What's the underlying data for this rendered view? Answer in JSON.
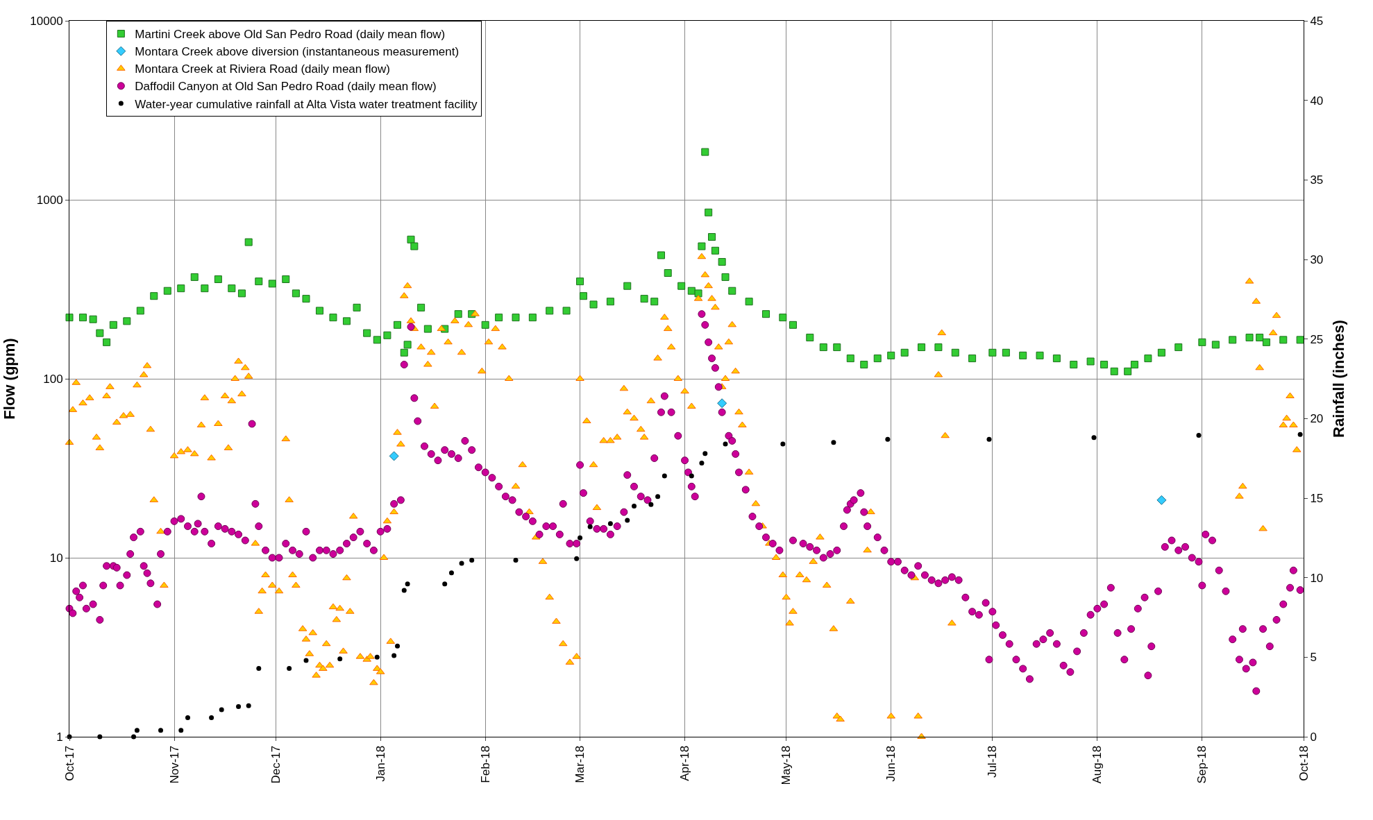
{
  "chart_data": {
    "type": "scatter",
    "ylabel": "Flow (gpm)",
    "y2label": "Rainfall (inches)",
    "log": "y",
    "grid": true,
    "legend": "top left",
    "xlim": [
      "2017-10-01",
      "2018-10-01"
    ],
    "xticks": [
      {
        "value": "2017-10-01",
        "label": "Oct-17"
      },
      {
        "value": "2017-11-01",
        "label": "Nov-17"
      },
      {
        "value": "2017-12-01",
        "label": "Dec-17"
      },
      {
        "value": "2018-01-01",
        "label": "Jan-18"
      },
      {
        "value": "2018-02-01",
        "label": "Feb-18"
      },
      {
        "value": "2018-03-01",
        "label": "Mar-18"
      },
      {
        "value": "2018-04-01",
        "label": "Apr-18"
      },
      {
        "value": "2018-05-01",
        "label": "May-18"
      },
      {
        "value": "2018-06-01",
        "label": "Jun-18"
      },
      {
        "value": "2018-07-01",
        "label": "Jul-18"
      },
      {
        "value": "2018-08-01",
        "label": "Aug-18"
      },
      {
        "value": "2018-09-01",
        "label": "Sep-18"
      },
      {
        "value": "2018-10-01",
        "label": "Oct-18"
      }
    ],
    "ylim": [
      1,
      10000
    ],
    "yticks": [
      1,
      10,
      100,
      1000,
      10000
    ],
    "y2lim": [
      0,
      45
    ],
    "y2ticks": [
      0,
      5,
      10,
      15,
      20,
      25,
      30,
      35,
      40,
      45
    ],
    "series": [
      {
        "name": "Martini Creek above Old San Pedro Road (daily mean flow)",
        "color": "#33cc33",
        "marker": "square",
        "x": [
          "2017-10-01",
          "2017-10-05",
          "2017-10-08",
          "2017-10-10",
          "2017-10-12",
          "2017-10-14",
          "2017-10-18",
          "2017-10-22",
          "2017-10-26",
          "2017-10-30",
          "2017-11-03",
          "2017-11-07",
          "2017-11-10",
          "2017-11-14",
          "2017-11-18",
          "2017-11-21",
          "2017-11-23",
          "2017-11-26",
          "2017-11-30",
          "2017-12-04",
          "2017-12-07",
          "2017-12-10",
          "2017-12-14",
          "2017-12-18",
          "2017-12-22",
          "2017-12-25",
          "2017-12-28",
          "2017-12-31",
          "2018-01-03",
          "2018-01-06",
          "2018-01-08",
          "2018-01-09",
          "2018-01-10",
          "2018-01-11",
          "2018-01-13",
          "2018-01-15",
          "2018-01-20",
          "2018-01-24",
          "2018-01-28",
          "2018-02-01",
          "2018-02-05",
          "2018-02-10",
          "2018-02-15",
          "2018-02-20",
          "2018-02-25",
          "2018-03-01",
          "2018-03-02",
          "2018-03-05",
          "2018-03-10",
          "2018-03-15",
          "2018-03-20",
          "2018-03-23",
          "2018-03-25",
          "2018-03-27",
          "2018-03-31",
          "2018-04-03",
          "2018-04-05",
          "2018-04-06",
          "2018-04-07",
          "2018-04-08",
          "2018-04-09",
          "2018-04-10",
          "2018-04-12",
          "2018-04-13",
          "2018-04-15",
          "2018-04-20",
          "2018-04-25",
          "2018-04-30",
          "2018-05-03",
          "2018-05-08",
          "2018-05-12",
          "2018-05-16",
          "2018-05-20",
          "2018-05-24",
          "2018-05-28",
          "2018-06-01",
          "2018-06-05",
          "2018-06-10",
          "2018-06-15",
          "2018-06-20",
          "2018-06-25",
          "2018-07-01",
          "2018-07-05",
          "2018-07-10",
          "2018-07-15",
          "2018-07-20",
          "2018-07-25",
          "2018-07-30",
          "2018-08-03",
          "2018-08-06",
          "2018-08-10",
          "2018-08-12",
          "2018-08-16",
          "2018-08-20",
          "2018-08-25",
          "2018-09-01",
          "2018-09-05",
          "2018-09-10",
          "2018-09-15",
          "2018-09-18",
          "2018-09-20",
          "2018-09-25",
          "2018-09-30"
        ],
        "values": [
          220,
          220,
          215,
          180,
          160,
          200,
          210,
          240,
          290,
          310,
          320,
          370,
          320,
          360,
          320,
          300,
          580,
          350,
          340,
          360,
          300,
          280,
          240,
          220,
          210,
          250,
          180,
          165,
          175,
          200,
          140,
          155,
          600,
          550,
          250,
          190,
          190,
          230,
          230,
          200,
          220,
          220,
          220,
          240,
          240,
          350,
          290,
          260,
          270,
          330,
          280,
          270,
          490,
          390,
          330,
          310,
          300,
          550,
          1850,
          850,
          620,
          520,
          450,
          370,
          310,
          270,
          230,
          220,
          200,
          170,
          150,
          150,
          130,
          120,
          130,
          135,
          140,
          150,
          150,
          140,
          130,
          140,
          140,
          135,
          135,
          130,
          120,
          125,
          120,
          110,
          110,
          120,
          130,
          140,
          150,
          160,
          155,
          165,
          170,
          170,
          160,
          165,
          165
        ]
      },
      {
        "name": "Montara Creek above diversion (instantaneous measurement)",
        "color": "#33ccff",
        "marker": "diamond",
        "x": [
          "2018-01-05",
          "2018-04-12",
          "2018-08-20"
        ],
        "values": [
          37,
          73,
          21
        ]
      },
      {
        "name": "Montara Creek at Riviera Road (daily mean flow)",
        "color": "#ffcc00",
        "marker": "triangle",
        "x": [
          "2017-10-01",
          "2017-10-02",
          "2017-10-03",
          "2017-10-05",
          "2017-10-07",
          "2017-10-09",
          "2017-10-10",
          "2017-10-12",
          "2017-10-13",
          "2017-10-15",
          "2017-10-17",
          "2017-10-19",
          "2017-10-21",
          "2017-10-23",
          "2017-10-24",
          "2017-10-25",
          "2017-10-26",
          "2017-10-28",
          "2017-10-29",
          "2017-11-01",
          "2017-11-03",
          "2017-11-05",
          "2017-11-07",
          "2017-11-09",
          "2017-11-10",
          "2017-11-12",
          "2017-11-14",
          "2017-11-16",
          "2017-11-17",
          "2017-11-18",
          "2017-11-19",
          "2017-11-20",
          "2017-11-21",
          "2017-11-22",
          "2017-11-23",
          "2017-11-25",
          "2017-11-26",
          "2017-11-27",
          "2017-11-28",
          "2017-11-30",
          "2017-12-02",
          "2017-12-04",
          "2017-12-05",
          "2017-12-06",
          "2017-12-07",
          "2017-12-09",
          "2017-12-10",
          "2017-12-11",
          "2017-12-12",
          "2017-12-13",
          "2017-12-14",
          "2017-12-15",
          "2017-12-16",
          "2017-12-17",
          "2017-12-18",
          "2017-12-19",
          "2017-12-20",
          "2017-12-21",
          "2017-12-22",
          "2017-12-23",
          "2017-12-24",
          "2017-12-26",
          "2017-12-28",
          "2017-12-29",
          "2017-12-30",
          "2017-12-31",
          "2018-01-01",
          "2018-01-02",
          "2018-01-03",
          "2018-01-04",
          "2018-01-05",
          "2018-01-06",
          "2018-01-07",
          "2018-01-08",
          "2018-01-09",
          "2018-01-10",
          "2018-01-11",
          "2018-01-13",
          "2018-01-15",
          "2018-01-16",
          "2018-01-17",
          "2018-01-19",
          "2018-01-21",
          "2018-01-23",
          "2018-01-25",
          "2018-01-27",
          "2018-01-29",
          "2018-01-31",
          "2018-02-02",
          "2018-02-04",
          "2018-02-06",
          "2018-02-08",
          "2018-02-10",
          "2018-02-12",
          "2018-02-14",
          "2018-02-16",
          "2018-02-18",
          "2018-02-20",
          "2018-02-22",
          "2018-02-24",
          "2018-02-26",
          "2018-02-28",
          "2018-03-01",
          "2018-03-03",
          "2018-03-05",
          "2018-03-06",
          "2018-03-08",
          "2018-03-10",
          "2018-03-12",
          "2018-03-14",
          "2018-03-15",
          "2018-03-17",
          "2018-03-19",
          "2018-03-20",
          "2018-03-22",
          "2018-03-24",
          "2018-03-26",
          "2018-03-27",
          "2018-03-28",
          "2018-03-30",
          "2018-04-01",
          "2018-04-03",
          "2018-04-05",
          "2018-04-06",
          "2018-04-07",
          "2018-04-08",
          "2018-04-09",
          "2018-04-10",
          "2018-04-11",
          "2018-04-12",
          "2018-04-13",
          "2018-04-14",
          "2018-04-15",
          "2018-04-16",
          "2018-04-17",
          "2018-04-18",
          "2018-04-20",
          "2018-04-22",
          "2018-04-24",
          "2018-04-26",
          "2018-04-28",
          "2018-04-30",
          "2018-05-01",
          "2018-05-02",
          "2018-05-03",
          "2018-05-05",
          "2018-05-07",
          "2018-05-09",
          "2018-05-11",
          "2018-05-13",
          "2018-05-15",
          "2018-05-16",
          "2018-05-17",
          "2018-05-20",
          "2018-05-25",
          "2018-05-26",
          "2018-06-01",
          "2018-06-08",
          "2018-06-09",
          "2018-06-10",
          "2018-06-15",
          "2018-06-16",
          "2018-06-17",
          "2018-06-19",
          "2018-09-12",
          "2018-09-13",
          "2018-09-15",
          "2018-09-17",
          "2018-09-18",
          "2018-09-19",
          "2018-09-22",
          "2018-09-23",
          "2018-09-25",
          "2018-09-26",
          "2018-09-27",
          "2018-09-28",
          "2018-09-29"
        ],
        "values": [
          44,
          67,
          95,
          73,
          78,
          47,
          41,
          80,
          90,
          57,
          62,
          63,
          92,
          105,
          118,
          52,
          21,
          14,
          7,
          37,
          39,
          40,
          38,
          55,
          78,
          36,
          56,
          80,
          41,
          75,
          100,
          125,
          82,
          115,
          103,
          12,
          5,
          6.5,
          8,
          7,
          6.5,
          46,
          21,
          8,
          7,
          4,
          3.5,
          2.9,
          3.8,
          2.2,
          2.5,
          2.4,
          3.3,
          2.5,
          5.3,
          4.5,
          5.2,
          3,
          7.7,
          5,
          17,
          2.8,
          2.7,
          2.8,
          2,
          2.4,
          2.3,
          10,
          16,
          3.4,
          18,
          50,
          43,
          290,
          330,
          210,
          190,
          150,
          120,
          140,
          70,
          190,
          160,
          210,
          140,
          200,
          230,
          110,
          160,
          190,
          150,
          100,
          25,
          33,
          18,
          13,
          9.5,
          6,
          4.4,
          3.3,
          2.6,
          2.8,
          100,
          58,
          33,
          19,
          45,
          45,
          47,
          88,
          65,
          60,
          52,
          47,
          75,
          130,
          220,
          190,
          150,
          100,
          85,
          70,
          280,
          480,
          380,
          330,
          280,
          250,
          150,
          90,
          100,
          160,
          200,
          110,
          65,
          55,
          30,
          20,
          15,
          12,
          10,
          8,
          6,
          4.3,
          5,
          8,
          7.5,
          9.5,
          13,
          7,
          4,
          1.3,
          1.25,
          5.7,
          11,
          18,
          1.3,
          7.7,
          1.3,
          1.0,
          105,
          180,
          48,
          4.3,
          22,
          25,
          350,
          270,
          115,
          14.5,
          180,
          225,
          55,
          60,
          80,
          55,
          40
        ]
      },
      {
        "name": "Daffodil Canyon at Old San Pedro Road (daily mean flow)",
        "color": "#cc0099",
        "marker": "circle",
        "x": [
          "2017-10-01",
          "2017-10-02",
          "2017-10-03",
          "2017-10-04",
          "2017-10-05",
          "2017-10-06",
          "2017-10-08",
          "2017-10-10",
          "2017-10-11",
          "2017-10-12",
          "2017-10-14",
          "2017-10-15",
          "2017-10-16",
          "2017-10-18",
          "2017-10-19",
          "2017-10-20",
          "2017-10-22",
          "2017-10-23",
          "2017-10-24",
          "2017-10-25",
          "2017-10-27",
          "2017-10-28",
          "2017-10-30",
          "2017-11-01",
          "2017-11-03",
          "2017-11-05",
          "2017-11-07",
          "2017-11-08",
          "2017-11-09",
          "2017-11-10",
          "2017-11-12",
          "2017-11-14",
          "2017-11-16",
          "2017-11-18",
          "2017-11-20",
          "2017-11-22",
          "2017-11-24",
          "2017-11-25",
          "2017-11-26",
          "2017-11-28",
          "2017-11-30",
          "2017-12-02",
          "2017-12-04",
          "2017-12-06",
          "2017-12-08",
          "2017-12-10",
          "2017-12-12",
          "2017-12-14",
          "2017-12-16",
          "2017-12-18",
          "2017-12-20",
          "2017-12-22",
          "2017-12-24",
          "2017-12-26",
          "2017-12-28",
          "2017-12-30",
          "2018-01-01",
          "2018-01-03",
          "2018-01-05",
          "2018-01-07",
          "2018-01-08",
          "2018-01-10",
          "2018-01-11",
          "2018-01-12",
          "2018-01-14",
          "2018-01-16",
          "2018-01-18",
          "2018-01-20",
          "2018-01-22",
          "2018-01-24",
          "2018-01-26",
          "2018-01-28",
          "2018-01-30",
          "2018-02-01",
          "2018-02-03",
          "2018-02-05",
          "2018-02-07",
          "2018-02-09",
          "2018-02-11",
          "2018-02-13",
          "2018-02-15",
          "2018-02-17",
          "2018-02-19",
          "2018-02-21",
          "2018-02-23",
          "2018-02-24",
          "2018-02-26",
          "2018-02-28",
          "2018-03-01",
          "2018-03-02",
          "2018-03-04",
          "2018-03-06",
          "2018-03-08",
          "2018-03-10",
          "2018-03-12",
          "2018-03-14",
          "2018-03-15",
          "2018-03-17",
          "2018-03-19",
          "2018-03-21",
          "2018-03-23",
          "2018-03-25",
          "2018-03-26",
          "2018-03-28",
          "2018-03-30",
          "2018-04-01",
          "2018-04-02",
          "2018-04-03",
          "2018-04-04",
          "2018-04-06",
          "2018-04-07",
          "2018-04-08",
          "2018-04-09",
          "2018-04-10",
          "2018-04-11",
          "2018-04-12",
          "2018-04-14",
          "2018-04-15",
          "2018-04-16",
          "2018-04-17",
          "2018-04-19",
          "2018-04-21",
          "2018-04-23",
          "2018-04-25",
          "2018-04-27",
          "2018-04-29",
          "2018-05-03",
          "2018-05-06",
          "2018-05-08",
          "2018-05-10",
          "2018-05-12",
          "2018-05-14",
          "2018-05-16",
          "2018-05-18",
          "2018-05-19",
          "2018-05-20",
          "2018-05-21",
          "2018-05-23",
          "2018-05-24",
          "2018-05-25",
          "2018-05-28",
          "2018-05-30",
          "2018-06-01",
          "2018-06-03",
          "2018-06-05",
          "2018-06-07",
          "2018-06-09",
          "2018-06-11",
          "2018-06-13",
          "2018-06-15",
          "2018-06-17",
          "2018-06-19",
          "2018-06-21",
          "2018-06-23",
          "2018-06-25",
          "2018-06-27",
          "2018-06-29",
          "2018-06-30",
          "2018-07-01",
          "2018-07-02",
          "2018-07-04",
          "2018-07-06",
          "2018-07-08",
          "2018-07-10",
          "2018-07-12",
          "2018-07-14",
          "2018-07-16",
          "2018-07-18",
          "2018-07-20",
          "2018-07-22",
          "2018-07-24",
          "2018-07-26",
          "2018-07-28",
          "2018-07-30",
          "2018-08-01",
          "2018-08-03",
          "2018-08-05",
          "2018-08-07",
          "2018-08-09",
          "2018-08-11",
          "2018-08-13",
          "2018-08-15",
          "2018-08-16",
          "2018-08-17",
          "2018-08-19",
          "2018-08-21",
          "2018-08-23",
          "2018-08-25",
          "2018-08-27",
          "2018-08-29",
          "2018-08-31",
          "2018-09-01",
          "2018-09-02",
          "2018-09-04",
          "2018-09-06",
          "2018-09-08",
          "2018-09-10",
          "2018-09-12",
          "2018-09-13",
          "2018-09-14",
          "2018-09-16",
          "2018-09-17",
          "2018-09-19",
          "2018-09-21",
          "2018-09-23",
          "2018-09-25",
          "2018-09-27",
          "2018-09-28",
          "2018-09-30"
        ],
        "values": [
          5.2,
          4.9,
          6.5,
          6,
          7,
          5.2,
          5.5,
          4.5,
          7,
          9,
          9,
          8.8,
          7,
          8,
          10.5,
          13,
          14,
          9,
          8.2,
          7.2,
          5.5,
          10.5,
          14,
          16,
          16.5,
          15,
          14,
          15.5,
          22,
          14,
          12,
          15,
          14.5,
          14,
          13.5,
          12.5,
          56,
          20,
          15,
          11,
          10,
          10,
          12,
          11,
          10.5,
          14,
          10,
          11,
          11,
          10.5,
          11,
          12,
          13,
          14,
          12,
          11,
          14,
          14.5,
          20,
          21,
          120,
          195,
          78,
          58,
          42,
          38,
          35,
          40,
          38,
          36,
          45,
          40,
          32,
          30,
          28,
          25,
          22,
          21,
          18,
          17,
          16,
          13.5,
          15,
          15,
          13.5,
          20,
          12,
          12,
          33,
          23,
          16,
          14.5,
          14.5,
          13.5,
          15,
          18,
          29,
          25,
          22,
          21,
          36,
          65,
          80,
          65,
          48,
          35,
          30,
          25,
          22,
          230,
          200,
          160,
          130,
          115,
          90,
          65,
          48,
          45,
          38,
          30,
          24,
          17,
          15,
          13,
          12,
          11,
          12.5,
          12,
          11.5,
          11,
          10,
          10.5,
          11,
          15,
          18.5,
          20,
          21,
          23,
          18,
          15,
          13,
          11,
          9.5,
          9.5,
          8.5,
          8,
          9,
          8,
          7.5,
          7.2,
          7.5,
          7.8,
          7.5,
          6,
          5,
          4.8,
          5.6,
          2.7,
          5,
          4.2,
          3.7,
          3.3,
          2.7,
          2.4,
          2.1,
          3.3,
          3.5,
          3.8,
          3.3,
          2.5,
          2.3,
          3,
          3.8,
          4.8,
          5.2,
          5.5,
          6.8,
          3.8,
          2.7,
          4,
          5.2,
          6,
          2.2,
          3.2,
          6.5,
          11.5,
          12.5,
          11,
          11.5,
          10,
          9.5,
          7,
          13.5,
          12.5,
          8.5,
          6.5,
          3.5,
          2.7,
          4,
          2.4,
          2.6,
          1.8,
          4,
          3.2,
          4.5,
          5.5,
          6.8,
          8.5,
          6.6
        ]
      },
      {
        "name": "Water-year cumulative rainfall at Alta Vista water treatment facility",
        "color": "#000000",
        "marker": "circle",
        "axis": "y2",
        "x": [
          "2017-10-01",
          "2017-10-10",
          "2017-10-20",
          "2017-10-21",
          "2017-10-28",
          "2017-11-03",
          "2017-11-05",
          "2017-11-12",
          "2017-11-15",
          "2017-11-20",
          "2017-11-23",
          "2017-11-26",
          "2017-12-05",
          "2017-12-10",
          "2017-12-20",
          "2017-12-31",
          "2018-01-05",
          "2018-01-06",
          "2018-01-08",
          "2018-01-09",
          "2018-01-20",
          "2018-01-22",
          "2018-01-25",
          "2018-01-28",
          "2018-02-10",
          "2018-02-28",
          "2018-03-01",
          "2018-03-04",
          "2018-03-10",
          "2018-03-15",
          "2018-03-17",
          "2018-03-22",
          "2018-03-24",
          "2018-03-26",
          "2018-04-03",
          "2018-04-06",
          "2018-04-07",
          "2018-04-13",
          "2018-04-30",
          "2018-05-15",
          "2018-05-31",
          "2018-06-30",
          "2018-07-31",
          "2018-08-31",
          "2018-09-30"
        ],
        "values": [
          0,
          0,
          0,
          0.4,
          0.4,
          0.4,
          1.2,
          1.2,
          1.7,
          1.9,
          1.95,
          4.3,
          4.3,
          4.8,
          4.9,
          5.0,
          5.1,
          5.7,
          9.2,
          9.6,
          9.6,
          10.3,
          10.9,
          11.1,
          11.1,
          11.2,
          12.5,
          13.2,
          13.4,
          13.6,
          14.5,
          14.6,
          15.1,
          16.4,
          16.4,
          17.2,
          17.8,
          18.4,
          18.4,
          18.5,
          18.7,
          18.7,
          18.8,
          18.95,
          19.0
        ]
      }
    ]
  }
}
